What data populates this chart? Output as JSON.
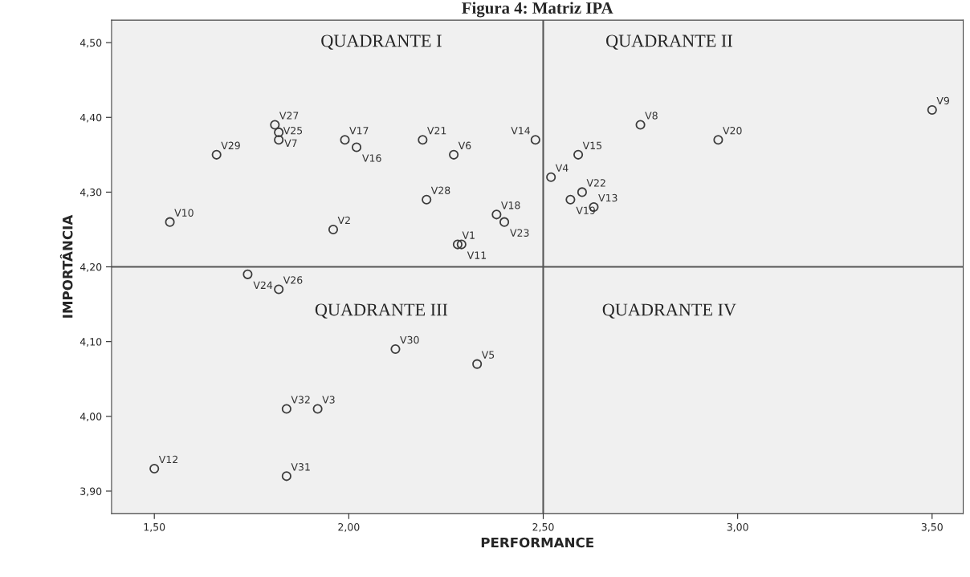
{
  "chart_data": {
    "type": "scatter",
    "title": "Figura 4: Matriz IPA",
    "xlabel": "PERFORMANCE",
    "ylabel": "IMPORTÂNCIA",
    "x": [
      1.81,
      1.82,
      1.82,
      1.99,
      2.02,
      1.66,
      2.19,
      2.27,
      2.2,
      1.54,
      1.96,
      2.28,
      2.29,
      1.74,
      1.82,
      2.12,
      2.33,
      1.84,
      1.92,
      1.5,
      1.84,
      2.48,
      2.59,
      2.52,
      2.6,
      2.57,
      2.63,
      2.38,
      2.4,
      2.95,
      3.5,
      2.75
    ],
    "series": [
      {
        "color": "#3c3c3c",
        "values": [
          4.39,
          4.38,
          4.37,
          4.37,
          4.36,
          4.35,
          4.37,
          4.35,
          4.29,
          4.26,
          4.25,
          4.23,
          4.23,
          4.19,
          4.17,
          4.09,
          4.07,
          4.01,
          4.01,
          3.93,
          3.92,
          4.37,
          4.35,
          4.32,
          4.3,
          4.29,
          4.28,
          4.27,
          4.26,
          4.37,
          4.41,
          4.39
        ]
      }
    ],
    "marker": "circle",
    "grid": false,
    "xlim": [
      1.39,
      3.58
    ],
    "ylim": [
      3.87,
      4.53
    ],
    "xticks": [
      {
        "value": 1.5,
        "label": "1,50"
      },
      {
        "value": 2.0,
        "label": "2,00"
      },
      {
        "value": 2.5,
        "label": "2,50"
      },
      {
        "value": 3.0,
        "label": "3,00"
      },
      {
        "value": 3.5,
        "label": "3,50"
      }
    ],
    "yticks": [
      {
        "value": 3.9,
        "label": "3,90"
      },
      {
        "value": 4.0,
        "label": "4,00"
      },
      {
        "value": 4.1,
        "label": "4,10"
      },
      {
        "value": 4.2,
        "label": "4,20"
      },
      {
        "value": 4.3,
        "label": "4,30"
      },
      {
        "value": 4.4,
        "label": "4,40"
      },
      {
        "value": 4.5,
        "label": "4,50"
      }
    ],
    "ref_lines": [
      {
        "axis": "x",
        "value": 2.5,
        "color": "#555555"
      },
      {
        "axis": "y",
        "value": 4.2,
        "color": "#555555"
      }
    ],
    "annotations": [
      "QUADRANTE I",
      "QUADRANTE II",
      "QUADRANTE III",
      "QUADRANTE IV",
      {
        "text": "V27",
        "x": 1.81,
        "y": 4.39
      },
      {
        "text": "V7",
        "x": 1.82,
        "y": 4.38
      },
      {
        "text": "V25",
        "x": 1.82,
        "y": 4.37
      },
      {
        "text": "V17",
        "x": 1.99,
        "y": 4.37
      },
      {
        "text": "V16",
        "x": 2.02,
        "y": 4.36
      },
      {
        "text": "V29",
        "x": 1.66,
        "y": 4.35
      },
      {
        "text": "V21",
        "x": 2.19,
        "y": 4.37
      },
      {
        "text": "V6",
        "x": 2.27,
        "y": 4.35
      },
      {
        "text": "V28",
        "x": 2.2,
        "y": 4.29
      },
      {
        "text": "V10",
        "x": 1.54,
        "y": 4.26
      },
      {
        "text": "V2",
        "x": 1.96,
        "y": 4.25
      },
      {
        "text": "V1",
        "x": 2.28,
        "y": 4.23
      },
      {
        "text": "V11",
        "x": 2.29,
        "y": 4.23
      },
      {
        "text": "V24",
        "x": 1.74,
        "y": 4.19
      },
      {
        "text": "V26",
        "x": 1.82,
        "y": 4.17
      },
      {
        "text": "V30",
        "x": 2.12,
        "y": 4.09
      },
      {
        "text": "V5",
        "x": 2.33,
        "y": 4.07
      },
      {
        "text": "V32",
        "x": 1.84,
        "y": 4.01
      },
      {
        "text": "V3",
        "x": 1.92,
        "y": 4.01
      },
      {
        "text": "V12",
        "x": 1.5,
        "y": 3.93
      },
      {
        "text": "V31",
        "x": 1.84,
        "y": 3.92
      },
      {
        "text": "V14",
        "x": 2.48,
        "y": 4.37
      },
      {
        "text": "V15",
        "x": 2.59,
        "y": 4.35
      },
      {
        "text": "V4",
        "x": 2.52,
        "y": 4.32
      },
      {
        "text": "V22",
        "x": 2.6,
        "y": 4.3
      },
      {
        "text": "V19",
        "x": 2.57,
        "y": 4.29
      },
      {
        "text": "V13",
        "x": 2.63,
        "y": 4.28
      },
      {
        "text": "V18",
        "x": 2.38,
        "y": 4.27
      },
      {
        "text": "V23",
        "x": 2.4,
        "y": 4.26
      },
      {
        "text": "V20",
        "x": 2.95,
        "y": 4.37
      },
      {
        "text": "V9",
        "x": 3.5,
        "y": 4.41
      },
      {
        "text": "V8",
        "x": 2.75,
        "y": 4.39
      }
    ]
  }
}
